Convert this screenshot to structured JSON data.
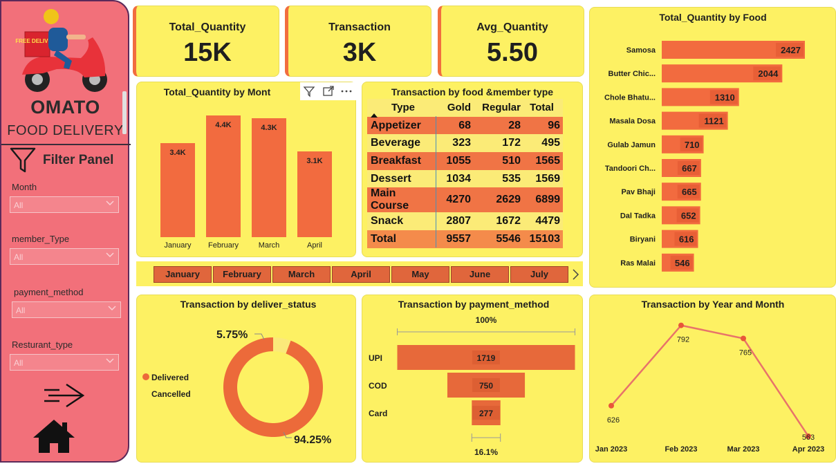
{
  "sidebar": {
    "brand_title": "OMATO",
    "brand_subtitle": "FOOD DELIVERY",
    "logo_text": "FREE DELIVERY",
    "filter_title": "Filter Panel",
    "slicers": [
      {
        "label": "Month",
        "value": "All"
      },
      {
        "label": "member_Type",
        "value": "All"
      },
      {
        "label": "payment_method",
        "value": "All"
      },
      {
        "label": "Resturant_type",
        "value": "All"
      }
    ]
  },
  "kpis": [
    {
      "title": "Total_Quantity",
      "value": "15K"
    },
    {
      "title": "Transaction",
      "value": "3K"
    },
    {
      "title": "Avg_Quantity",
      "value": "5.50"
    }
  ],
  "colors": {
    "accent": "#f16d3f",
    "card": "#fdf163",
    "sidebar": "#f2707a",
    "bar": "#f26b3f"
  },
  "month_slicer": [
    "January",
    "February",
    "March",
    "April",
    "May",
    "June",
    "July"
  ],
  "table": {
    "title": "Transaction by food &member type",
    "headers": [
      "Type",
      "Gold",
      "Regular",
      "Total"
    ],
    "rows": [
      [
        "Appetizer",
        "68",
        "28",
        "96"
      ],
      [
        "Beverage",
        "323",
        "172",
        "495"
      ],
      [
        "Breakfast",
        "1055",
        "510",
        "1565"
      ],
      [
        "Dessert",
        "1034",
        "535",
        "1569"
      ],
      [
        "Main Course",
        "4270",
        "2629",
        "6899"
      ],
      [
        "Snack",
        "2807",
        "1672",
        "4479"
      ]
    ],
    "total": [
      "Total",
      "9557",
      "5546",
      "15103"
    ]
  },
  "chart_data": [
    {
      "id": "month",
      "type": "bar",
      "title": "Total_Quantity by Mont",
      "categories": [
        "January",
        "February",
        "March",
        "April"
      ],
      "values": [
        3400,
        4400,
        4300,
        3100
      ],
      "labels": [
        "3.4K",
        "4.4K",
        "4.3K",
        "3.1K"
      ],
      "ylim": [
        0,
        4600
      ]
    },
    {
      "id": "food",
      "type": "bar",
      "orientation": "horizontal",
      "title": "Total_Quantity by Food",
      "categories": [
        "Samosa",
        "Butter Chic...",
        "Chole Bhatu...",
        "Masala Dosa",
        "Gulab Jamun",
        "Tandoori Ch...",
        "Pav Bhaji",
        "Dal Tadka",
        "Biryani",
        "Ras Malai"
      ],
      "values": [
        2427,
        2044,
        1310,
        1121,
        710,
        667,
        665,
        652,
        616,
        546
      ],
      "xlim": [
        0,
        2427
      ]
    },
    {
      "id": "deliver",
      "type": "pie",
      "title": "Transaction by deliver_status",
      "categories": [
        "Delivered",
        "Cancelled"
      ],
      "values": [
        94.25,
        5.75
      ],
      "labels": [
        "94.25%",
        "5.75%"
      ]
    },
    {
      "id": "payment",
      "type": "bar",
      "subtype": "funnel",
      "title": "Transaction by payment_method",
      "categories": [
        "UPI",
        "COD",
        "Card"
      ],
      "values": [
        1719,
        750,
        277
      ],
      "top_label": "100%",
      "bottom_label": "16.1%"
    },
    {
      "id": "trend",
      "type": "line",
      "title": "Transaction by Year and Month",
      "x": [
        "Jan 2023",
        "Feb 2023",
        "Mar 2023",
        "Apr 2023"
      ],
      "values": [
        626,
        792,
        765,
        563
      ],
      "ylim": [
        560,
        800
      ]
    }
  ]
}
